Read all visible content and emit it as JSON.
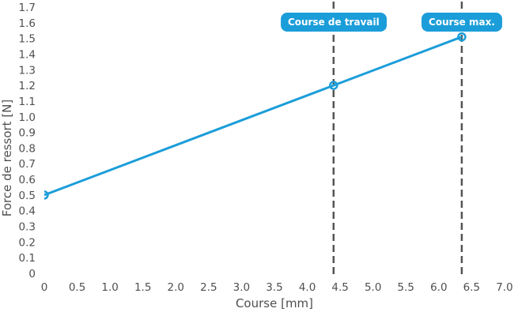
{
  "chart_data": {
    "type": "line",
    "title": "",
    "xlabel": "Course [mm]",
    "ylabel": "Force de ressort [N]",
    "xlim": [
      0,
      7.0
    ],
    "ylim": [
      0,
      1.7
    ],
    "grid": false,
    "legend_position": "none",
    "x_ticks": [
      0,
      0.5,
      1.0,
      1.5,
      2.0,
      2.5,
      3.0,
      3.5,
      4.0,
      4.5,
      5.0,
      5.5,
      6.0,
      6.5,
      7.0
    ],
    "x_tick_labels": [
      "0",
      "0.5",
      "1.0",
      "1.5",
      "2.0",
      "2.5",
      "3.0",
      "3.5",
      "4.0",
      "4.5",
      "5.0",
      "5.5",
      "6.0",
      "6.5",
      "7.0"
    ],
    "y_ticks": [
      0,
      0.1,
      0.2,
      0.3,
      0.4,
      0.5,
      0.6,
      0.7,
      0.8,
      0.9,
      1.0,
      1.1,
      1.2,
      1.3,
      1.4,
      1.5,
      1.6,
      1.7
    ],
    "y_tick_labels": [
      "0",
      "0.1",
      "0.2",
      "0.3",
      "0.4",
      "0.5",
      "0.6",
      "0.7",
      "0.8",
      "0.9",
      "1.0",
      "1.1",
      "1.2",
      "1.3",
      "1.4",
      "1.5",
      "1.6",
      "1.7"
    ],
    "series": [
      {
        "name": "Force de ressort",
        "color": "#1b9dd9",
        "marker": "open-circle",
        "points": [
          {
            "x": 0,
            "y": 0.5
          },
          {
            "x": 4.4,
            "y": 1.2
          },
          {
            "x": 6.35,
            "y": 1.51
          }
        ]
      }
    ],
    "annotations": [
      {
        "label": "Course de travail",
        "x": 4.4,
        "style": "dashed-vline-with-badge"
      },
      {
        "label": "Course max.",
        "x": 6.35,
        "style": "dashed-vline-with-badge"
      }
    ],
    "colors": {
      "line": "#1b9dd9",
      "badge_bg": "#1b9dd9",
      "badge_text": "#ffffff",
      "axis_text": "#4f4f4f",
      "dashed_line": "#545454",
      "background": "#ffffff"
    }
  }
}
